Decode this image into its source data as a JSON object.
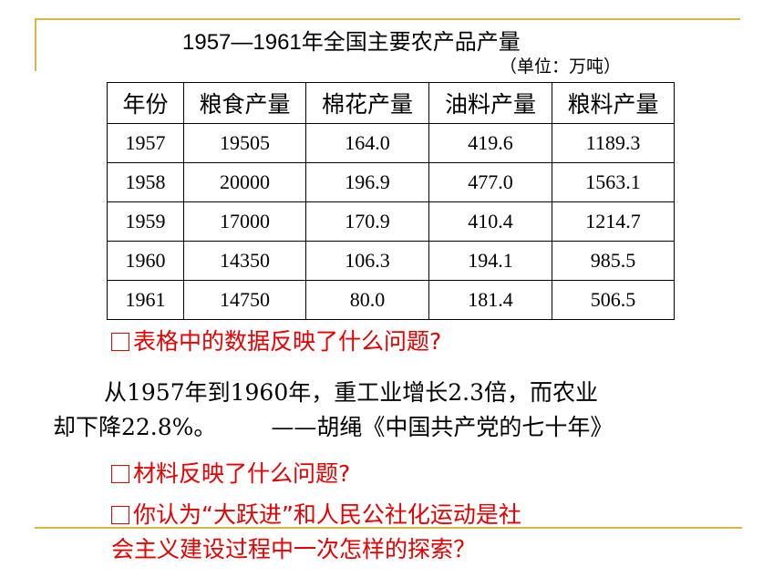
{
  "title": "1957—1961年全国主要农产品产量",
  "unit": "（单位：万吨）",
  "table": {
    "headers": [
      "年份",
      "粮食产量",
      "棉花产量",
      "油料产量",
      "粮料产量"
    ],
    "rows": [
      [
        "1957",
        "19505",
        "164.0",
        "419.6",
        "1189.3"
      ],
      [
        "1958",
        "20000",
        "196.9",
        "477.0",
        "1563.1"
      ],
      [
        "1959",
        "17000",
        "170.9",
        "410.4",
        "1214.7"
      ],
      [
        "1960",
        "14350",
        "106.3",
        "194.1",
        "985.5"
      ],
      [
        "1961",
        "14750",
        "80.0",
        "181.4",
        "506.5"
      ]
    ]
  },
  "question1": "表格中的数据反映了什么问题?",
  "quote": {
    "line1": "从1957年到1960年，重工业增长2.3倍，而农业",
    "line2": "却下降22.8%。",
    "source": "——胡绳《中国共产党的七十年》"
  },
  "question2": "材料反映了什么问题?",
  "question3_line1": "你认为“大跃进”和人民公社化运动是社",
  "question3_line2": "会主义建设过程中一次怎样的探索？",
  "colors": {
    "accent_rule": "#d7b542",
    "question_text": "#e60000"
  },
  "icons": [
    "checkbox-square-icon"
  ]
}
